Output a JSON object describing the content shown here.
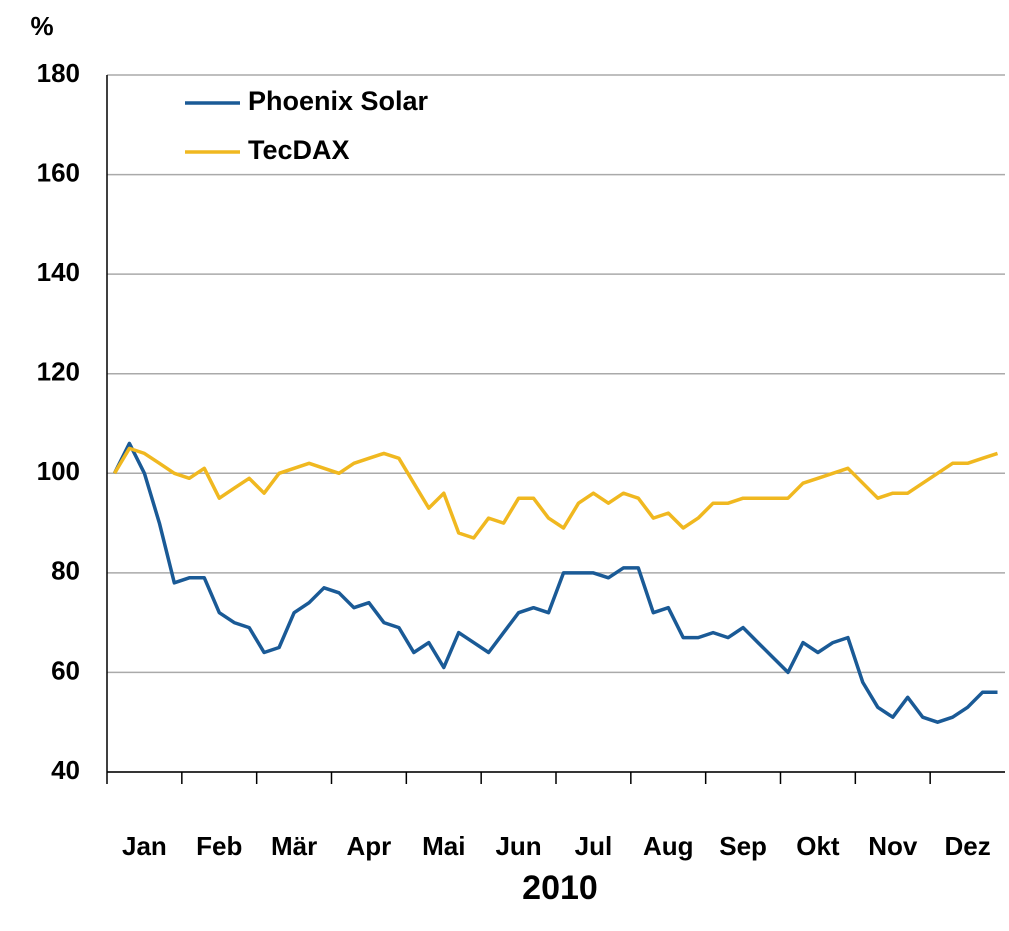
{
  "chart_data": {
    "type": "line",
    "ylabel": "%",
    "xlabel": "2010",
    "categories": [
      null,
      null,
      "Jan",
      null,
      null,
      null,
      null,
      "Feb",
      null,
      null,
      null,
      null,
      "Mär",
      null,
      null,
      null,
      null,
      "Apr",
      null,
      null,
      null,
      null,
      "Mai",
      null,
      null,
      null,
      null,
      "Jun",
      null,
      null,
      null,
      null,
      "Jul",
      null,
      null,
      null,
      null,
      "Aug",
      null,
      null,
      null,
      null,
      "Sep",
      null,
      null,
      null,
      null,
      "Okt",
      null,
      null,
      null,
      null,
      "Nov",
      null,
      null,
      null,
      null,
      "Dez",
      null,
      null
    ],
    "series": [
      {
        "name": "Phoenix Solar",
        "color": "#1a5a96",
        "values": [
          100,
          106,
          100,
          90,
          78,
          79,
          79,
          72,
          70,
          69,
          64,
          65,
          72,
          74,
          77,
          76,
          73,
          74,
          70,
          69,
          64,
          66,
          61,
          68,
          66,
          64,
          68,
          72,
          73,
          72,
          80,
          80,
          80,
          79,
          81,
          81,
          72,
          73,
          67,
          67,
          68,
          67,
          69,
          66,
          63,
          60,
          66,
          64,
          66,
          67,
          58,
          53,
          51,
          55,
          51,
          50,
          51,
          53,
          56,
          56
        ]
      },
      {
        "name": "TecDAX",
        "color": "#f0b820",
        "values": [
          100,
          105,
          104,
          102,
          100,
          99,
          101,
          95,
          97,
          99,
          96,
          100,
          101,
          102,
          101,
          100,
          102,
          103,
          104,
          103,
          98,
          93,
          96,
          88,
          87,
          91,
          90,
          95,
          95,
          91,
          89,
          94,
          96,
          94,
          96,
          95,
          91,
          92,
          89,
          91,
          94,
          94,
          95,
          95,
          95,
          95,
          98,
          99,
          100,
          101,
          98,
          95,
          96,
          96,
          98,
          100,
          102,
          102,
          103,
          104
        ]
      }
    ],
    "ylim": [
      40,
      180
    ],
    "yticks": [
      40,
      60,
      80,
      100,
      120,
      140,
      160,
      180
    ],
    "grid": true
  }
}
